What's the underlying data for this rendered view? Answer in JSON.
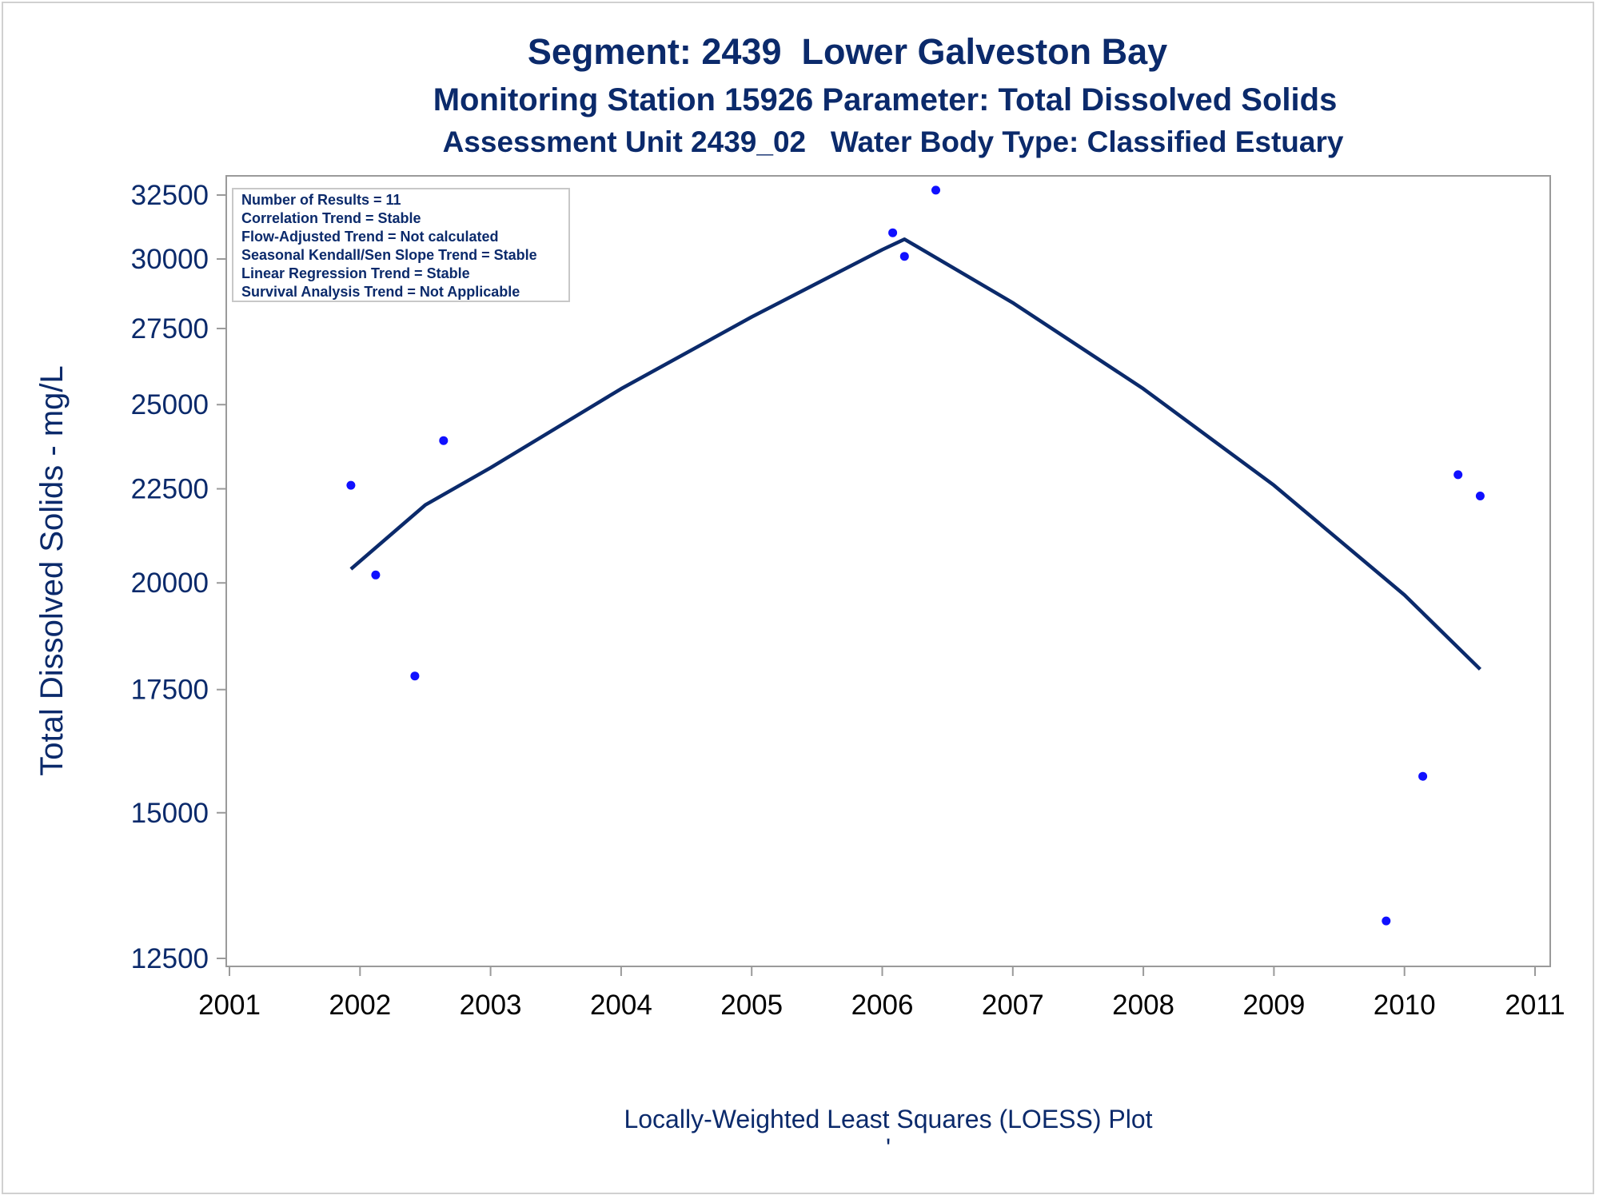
{
  "chart_data": {
    "type": "scatter",
    "title": "Segment: 2439  Lower Galveston Bay",
    "subtitle": "Monitoring Station 15926 Parameter: Total Dissolved Solids",
    "subtitle2": "Assessment Unit 2439_02   Water Body Type: Classified Estuary",
    "xlabel": "",
    "ylabel": "Total Dissolved Solids - mg/L",
    "footer": "Locally-Weighted Least Squares (LOESS) Plot",
    "footer_mark": "'",
    "xlim": [
      2001,
      2011
    ],
    "ylim": [
      12500,
      32500
    ],
    "y_scale": "log",
    "x_ticks": [
      "2001",
      "2002",
      "2003",
      "2004",
      "2005",
      "2006",
      "2007",
      "2008",
      "2009",
      "2010",
      "2011"
    ],
    "y_ticks": [
      "12500",
      "15000",
      "17500",
      "20000",
      "22500",
      "25000",
      "27500",
      "30000",
      "32500"
    ],
    "grid": false,
    "legend_position": "top-left",
    "info_box": [
      "Number of Results = 11",
      "Correlation Trend = Stable",
      "Flow-Adjusted Trend = Not calculated",
      "Seasonal Kendall/Sen Slope Trend = Stable",
      "Linear Regression Trend = Stable",
      "Survival Analysis Trend = Not Applicable"
    ],
    "series": [
      {
        "type": "scatter",
        "points": [
          {
            "x": 2001.93,
            "y": 22600
          },
          {
            "x": 2002.12,
            "y": 20200
          },
          {
            "x": 2002.42,
            "y": 17800
          },
          {
            "x": 2002.64,
            "y": 23900
          },
          {
            "x": 2006.08,
            "y": 31000
          },
          {
            "x": 2006.17,
            "y": 30100
          },
          {
            "x": 2006.41,
            "y": 32700
          },
          {
            "x": 2009.86,
            "y": 13100
          },
          {
            "x": 2010.14,
            "y": 15700
          },
          {
            "x": 2010.41,
            "y": 22900
          },
          {
            "x": 2010.58,
            "y": 22300
          }
        ]
      },
      {
        "type": "line",
        "points": [
          {
            "x": 2001.93,
            "y": 20350
          },
          {
            "x": 2002.5,
            "y": 22050
          },
          {
            "x": 2003.0,
            "y": 23100
          },
          {
            "x": 2004.0,
            "y": 25500
          },
          {
            "x": 2005.0,
            "y": 27900
          },
          {
            "x": 2006.0,
            "y": 30350
          },
          {
            "x": 2006.17,
            "y": 30750
          },
          {
            "x": 2007.0,
            "y": 28400
          },
          {
            "x": 2008.0,
            "y": 25500
          },
          {
            "x": 2009.0,
            "y": 22600
          },
          {
            "x": 2010.0,
            "y": 19700
          },
          {
            "x": 2010.58,
            "y": 17950
          }
        ]
      }
    ],
    "colors": {
      "text": "#0b2a6b",
      "points": "#1010ff",
      "line": "#0b2a6b",
      "axis": "#9a9a9a"
    }
  }
}
